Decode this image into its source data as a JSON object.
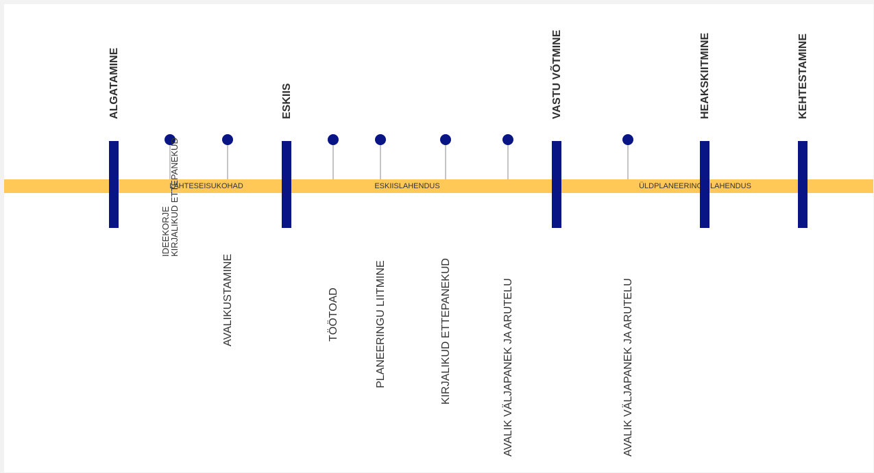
{
  "colors": {
    "band": "#ffc857",
    "milestone": "#0a1585",
    "dot": "#0a1585"
  },
  "milestones": [
    {
      "id": "algatamine",
      "label": "ALGATAMINE"
    },
    {
      "id": "eskiis",
      "label": "ESKIIS"
    },
    {
      "id": "vastu-votmine",
      "label": "VASTU VÕTMINE"
    },
    {
      "id": "heakskiitmine",
      "label": "HEAKSKIITMINE"
    },
    {
      "id": "kehtestamine",
      "label": "KEHTESTAMINE"
    }
  ],
  "phases": [
    {
      "id": "lahteseisukohad",
      "label": "LÄHTESEISUKOHAD"
    },
    {
      "id": "eskiislahendus",
      "label": "ESKIISLAHENDUS"
    },
    {
      "id": "uldplaneeringu-lahendus",
      "label": "ÜLDPLANEERINGU LAHENDUS"
    }
  ],
  "activities": [
    {
      "id": "ideekorje",
      "lines": [
        "IDEEKORJE",
        "KIRJALIKUD ETTEPANEKUD"
      ]
    },
    {
      "id": "avalikustamine",
      "lines": [
        "AVALIKUSTAMINE"
      ]
    },
    {
      "id": "tootoad",
      "lines": [
        "TÖÖTOAD"
      ]
    },
    {
      "id": "planeeringu-liitmine",
      "lines": [
        "PLANEERINGU LIITMINE"
      ]
    },
    {
      "id": "kirjalikud-ettepanekud",
      "lines": [
        "KIRJALIKUD ETTEPANEKUD"
      ]
    },
    {
      "id": "avalik-valjapanek-1",
      "lines": [
        "AVALIK VÄLJAPANEK JA ARUTELU"
      ]
    },
    {
      "id": "avalik-valjapanek-2",
      "lines": [
        "AVALIK VÄLJAPANEK JA ARUTELU"
      ]
    }
  ]
}
